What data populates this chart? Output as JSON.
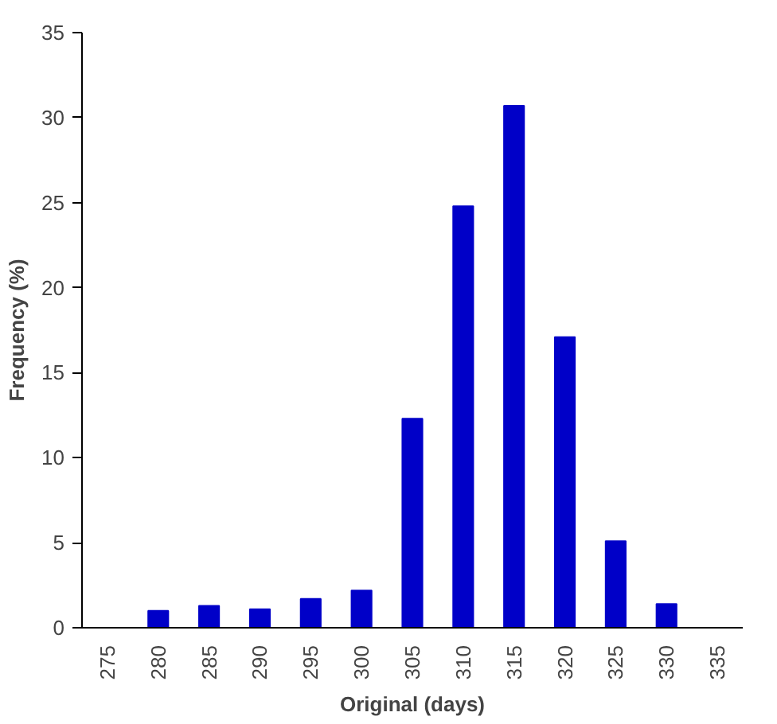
{
  "chart_data": {
    "type": "bar",
    "xlabel": "Original (days)",
    "ylabel": "Frequency (%)",
    "categories": [
      "275",
      "280",
      "285",
      "290",
      "295",
      "300",
      "305",
      "310",
      "315",
      "320",
      "325",
      "330",
      "335"
    ],
    "values": [
      0,
      1.0,
      1.3,
      1.1,
      1.7,
      2.2,
      12.3,
      24.8,
      30.7,
      17.1,
      5.1,
      1.4,
      0
    ],
    "color": "#0000c8",
    "ylim": [
      0,
      35
    ],
    "yticks": [
      0,
      5,
      10,
      15,
      20,
      25,
      30,
      35
    ],
    "grid": false
  }
}
